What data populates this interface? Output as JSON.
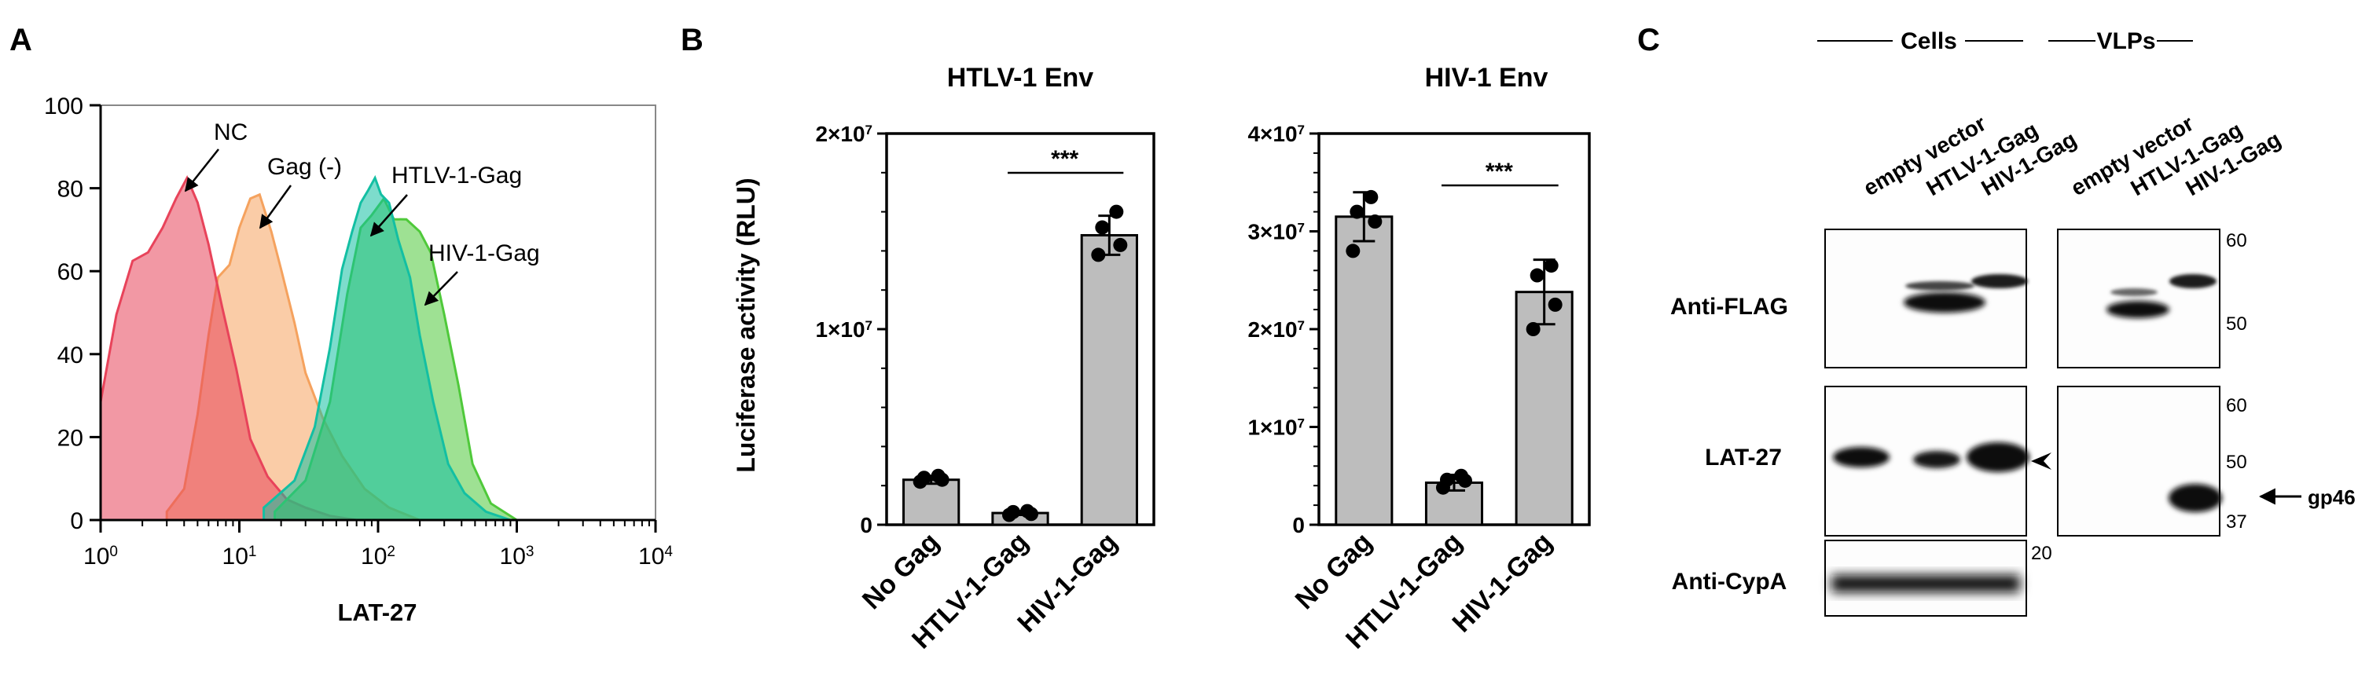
{
  "panels": {
    "a": "A",
    "b": "B",
    "c": "C"
  },
  "colors": {
    "nc": "#e8435a",
    "gag_neg": "#f5a25e",
    "htlv": "#13bfa3",
    "hiv": "#4fc93a",
    "bar": "#bdbdbd"
  },
  "panel_a": {
    "xlabel": "LAT-27",
    "x_ticks": [
      {
        "base": "10",
        "exp": "0",
        "value": 1
      },
      {
        "base": "10",
        "exp": "1",
        "value": 10
      },
      {
        "base": "10",
        "exp": "2",
        "value": 100
      },
      {
        "base": "10",
        "exp": "3",
        "value": 1000
      },
      {
        "base": "10",
        "exp": "4",
        "value": 10000
      }
    ],
    "y_ticks": [
      "0",
      "20",
      "40",
      "60",
      "80",
      "100"
    ],
    "curve_labels": {
      "nc": "NC",
      "gag_neg": "Gag (-)",
      "htlv": "HTLV-1-Gag",
      "hiv": "HIV-1-Gag"
    }
  },
  "panel_b": {
    "ylabel": "Luciferase activity (RLU)",
    "sig": "***",
    "left_title": "HTLV-1 Env",
    "right_title": "HIV-1 Env",
    "left_ticks": [
      {
        "text": "0",
        "value": 0
      },
      {
        "text": "1×10",
        "exp": "7",
        "value": 1
      },
      {
        "text": "2×10",
        "exp": "7",
        "value": 2
      }
    ],
    "right_ticks": [
      {
        "text": "0",
        "value": 0
      },
      {
        "text": "1×10",
        "exp": "7",
        "value": 1
      },
      {
        "text": "2×10",
        "exp": "7",
        "value": 2
      },
      {
        "text": "3×10",
        "exp": "7",
        "value": 3
      },
      {
        "text": "4×10",
        "exp": "7",
        "value": 4
      }
    ],
    "categories": [
      "No Gag",
      "HTLV-1-Gag",
      "HIV-1-Gag"
    ]
  },
  "panel_c": {
    "group_cells": "Cells",
    "group_vlps": "VLPs",
    "lanes": [
      "empty vector",
      "HTLV-1-Gag",
      "HIV-1-Gag",
      "empty vector",
      "HTLV-1-Gag",
      "HIV-1-Gag"
    ],
    "rows": [
      "Anti-FLAG",
      "LAT-27",
      "Anti-CypA"
    ],
    "mw_flag": [
      "60",
      "50"
    ],
    "mw_lat": [
      "60",
      "50",
      "37"
    ],
    "mw_cypa": [
      "20"
    ],
    "gp46": "gp46"
  },
  "chart_data": [
    {
      "type": "area",
      "title": "",
      "xlabel": "LAT-27",
      "ylabel": "",
      "xscale": "log",
      "xlim": [
        1,
        10000
      ],
      "ylim": [
        0,
        100
      ],
      "series": [
        {
          "name": "NC",
          "x": [
            1.0,
            1.3,
            1.7,
            2.2,
            2.8,
            3.5,
            4.2,
            5.0,
            6.0,
            7.5,
            9.5,
            12,
            16,
            22,
            30,
            45,
            70
          ],
          "y": [
            28,
            50,
            62,
            65,
            70,
            78,
            82,
            77,
            66,
            52,
            36,
            20,
            10,
            5,
            3,
            1,
            0
          ]
        },
        {
          "name": "Gag (-)",
          "x": [
            3,
            4,
            5,
            6,
            7,
            8.5,
            10,
            12,
            14,
            17,
            20,
            25,
            30,
            40,
            55,
            80,
            120,
            200
          ],
          "y": [
            2,
            8,
            25,
            45,
            58,
            62,
            70,
            78,
            78,
            70,
            60,
            48,
            35,
            25,
            15,
            8,
            3,
            0
          ]
        },
        {
          "name": "HTLV-1-Gag",
          "x": [
            15,
            25,
            35,
            45,
            55,
            65,
            75,
            85,
            95,
            105,
            120,
            140,
            170,
            200,
            250,
            320,
            420,
            600,
            900
          ],
          "y": [
            3,
            10,
            22,
            42,
            60,
            70,
            76,
            80,
            82,
            79,
            76,
            68,
            58,
            45,
            28,
            14,
            6,
            2,
            0
          ]
        },
        {
          "name": "HIV-1-Gag",
          "x": [
            18,
            30,
            45,
            60,
            75,
            90,
            110,
            130,
            160,
            200,
            240,
            300,
            380,
            480,
            650,
            1000
          ],
          "y": [
            2,
            10,
            28,
            55,
            70,
            74,
            77,
            73,
            72,
            70,
            64,
            50,
            32,
            14,
            4,
            0
          ]
        }
      ]
    },
    {
      "type": "bar",
      "title": "HTLV-1 Env",
      "ylabel": "Luciferase activity (RLU)",
      "ylim": [
        0,
        20000000
      ],
      "categories": [
        "No Gag",
        "HTLV-1-Gag",
        "HIV-1-Gag"
      ],
      "values": [
        2300000,
        600000,
        14800000
      ],
      "errors": [
        200000,
        100000,
        1000000
      ],
      "points": [
        [
          2200000,
          2300000,
          2400000,
          2500000
        ],
        [
          500000,
          550000,
          650000,
          700000
        ],
        [
          13800000,
          14300000,
          15200000,
          16000000
        ]
      ],
      "significance": {
        "between": [
          "HTLV-1-Gag",
          "HIV-1-Gag"
        ],
        "label": "***"
      }
    },
    {
      "type": "bar",
      "title": "HIV-1 Env",
      "ylabel": "Luciferase activity (RLU)",
      "ylim": [
        0,
        40000000
      ],
      "categories": [
        "No Gag",
        "HTLV-1-Gag",
        "HIV-1-Gag"
      ],
      "values": [
        31500000,
        4300000,
        23800000
      ],
      "errors": [
        2500000,
        800000,
        3300000
      ],
      "points": [
        [
          28000000,
          31000000,
          32000000,
          33500000
        ],
        [
          3800000,
          4500000,
          4600000,
          5000000
        ],
        [
          20000000,
          22500000,
          25500000,
          26500000
        ]
      ],
      "significance": {
        "between": [
          "HTLV-1-Gag",
          "HIV-1-Gag"
        ],
        "label": "***"
      }
    }
  ]
}
